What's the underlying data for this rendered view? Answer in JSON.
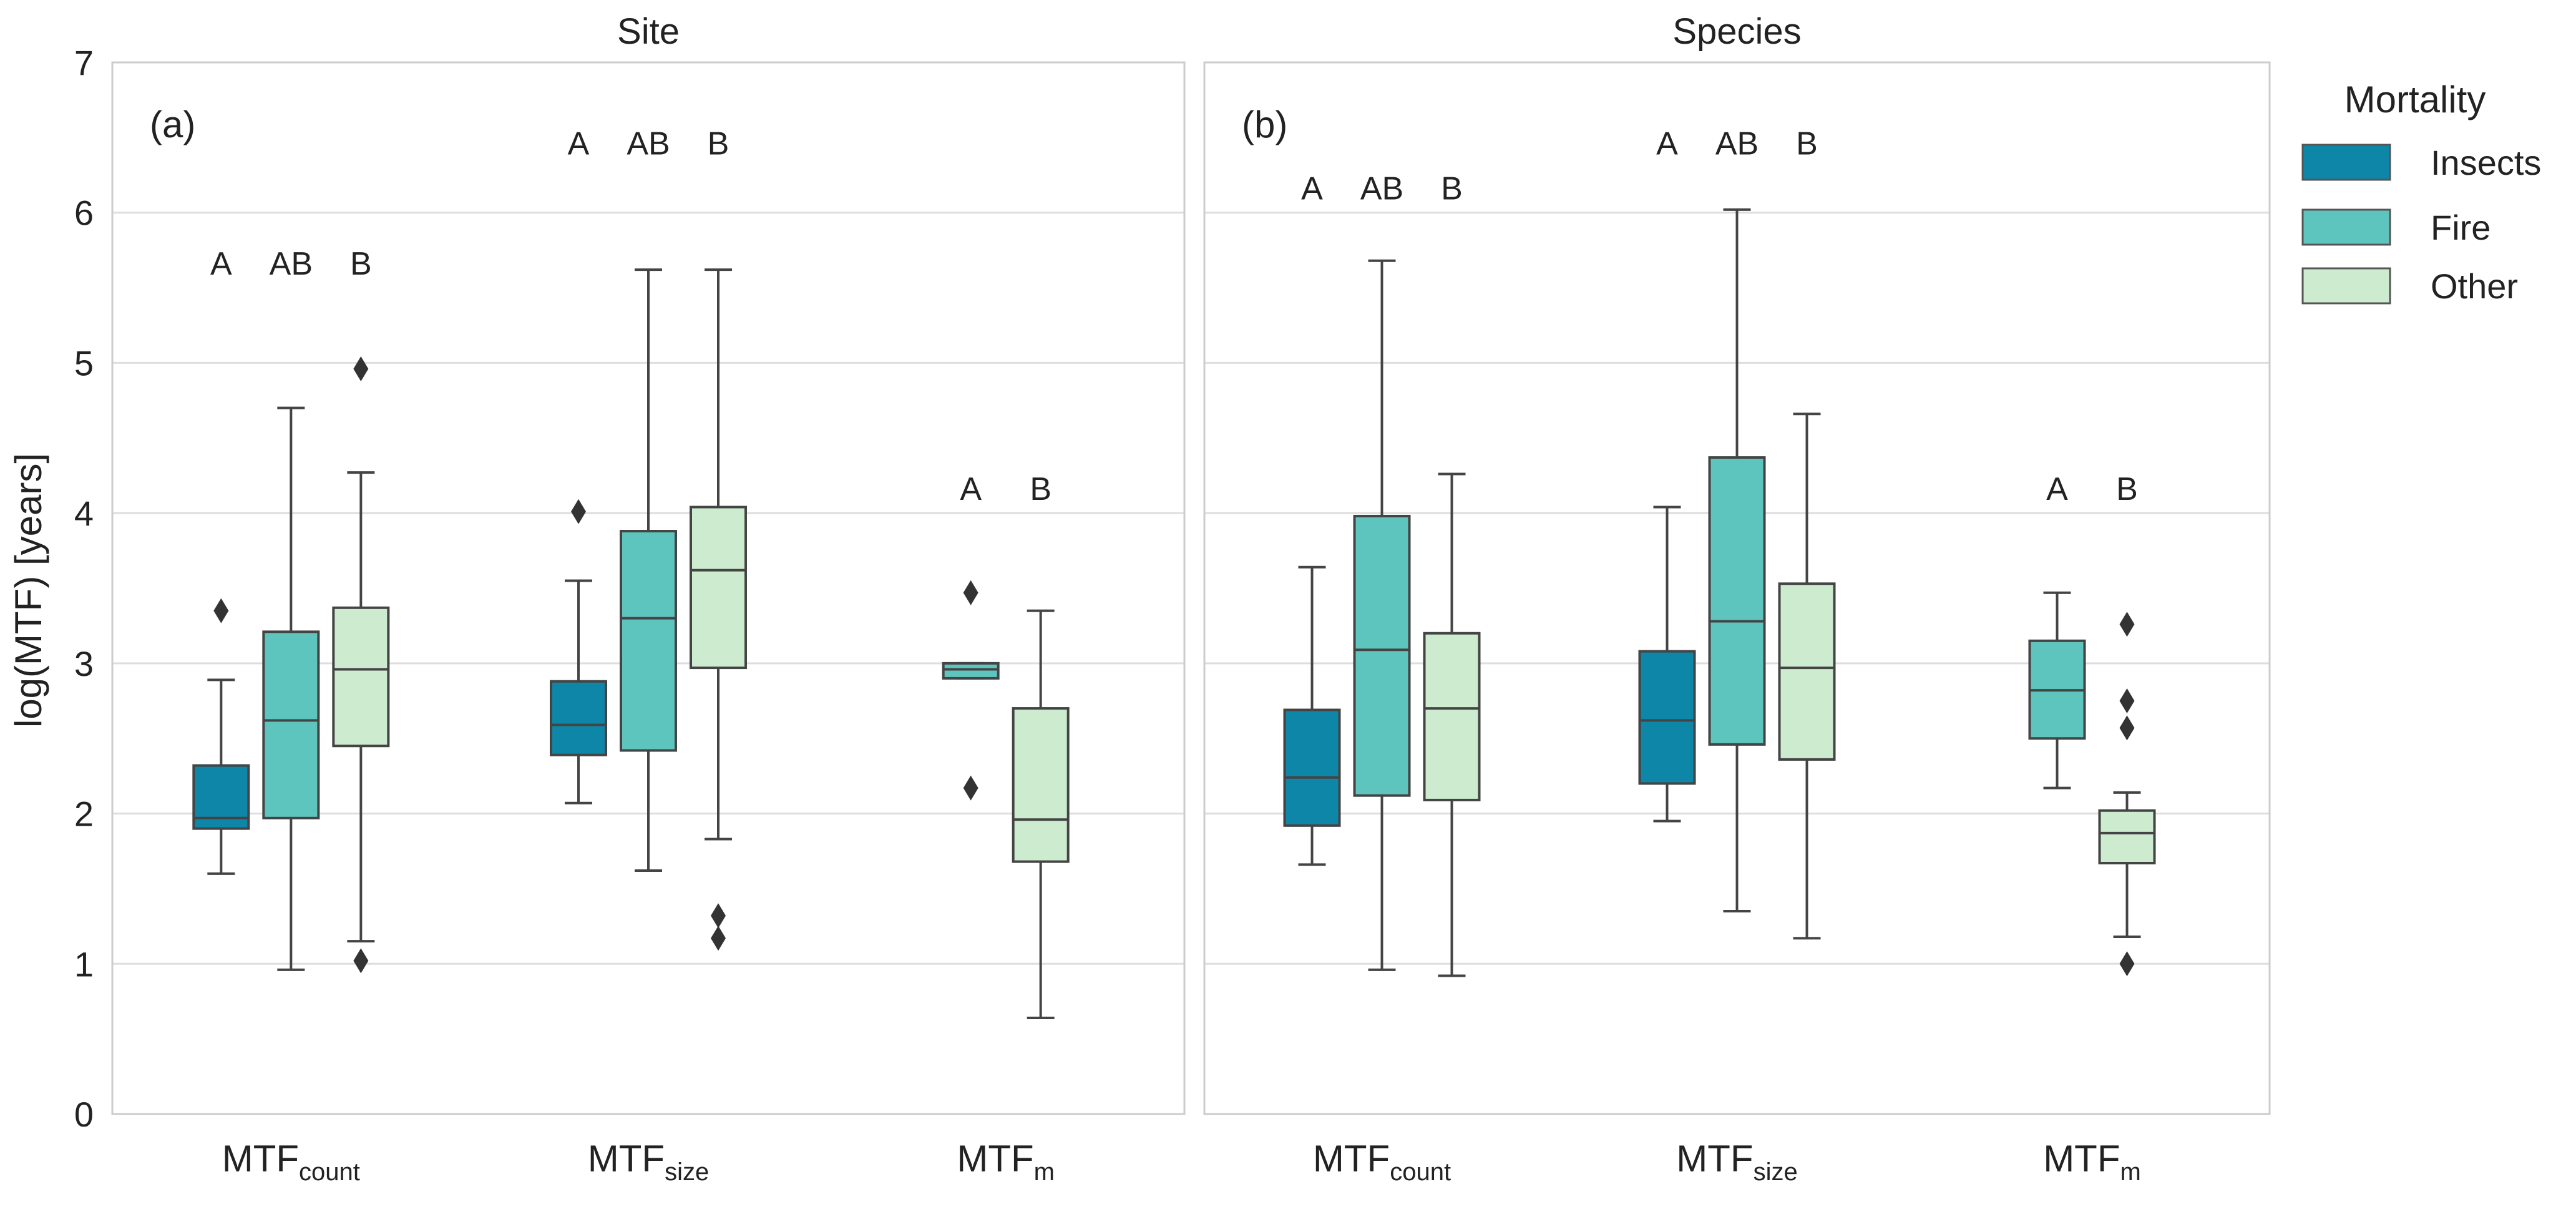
{
  "chart_data": {
    "type": "box",
    "ylabel": "log(MTF) [years]",
    "ylim": [
      0,
      7
    ],
    "yticks": [
      "0",
      "1",
      "2",
      "3",
      "4",
      "5",
      "6",
      "7"
    ],
    "grid": true,
    "legend": {
      "title": "Mortality",
      "position": "right",
      "entries": [
        {
          "name": "Insects",
          "color": "#0e86a8"
        },
        {
          "name": "Fire",
          "color": "#5ec4be"
        },
        {
          "name": "Other",
          "color": "#cdeccf"
        }
      ]
    },
    "panels": [
      {
        "title": "Site",
        "tag": "(a)",
        "groups": [
          {
            "label": "MTF",
            "sub": "count",
            "boxes": [
              {
                "category": "Insects",
                "q1": 1.9,
                "median": 1.97,
                "q3": 2.32,
                "whisker_low": 1.6,
                "whisker_high": 2.89,
                "outliers": [
                  3.35
                ],
                "letter": "A",
                "letter_y": 5.65
              },
              {
                "category": "Fire",
                "q1": 1.97,
                "median": 2.62,
                "q3": 3.21,
                "whisker_low": 0.96,
                "whisker_high": 4.7,
                "outliers": [],
                "letter": "AB",
                "letter_y": 5.65
              },
              {
                "category": "Other",
                "q1": 2.45,
                "median": 2.96,
                "q3": 3.37,
                "whisker_low": 1.15,
                "whisker_high": 4.27,
                "outliers": [
                  1.02,
                  4.96
                ],
                "letter": "B",
                "letter_y": 5.65
              }
            ]
          },
          {
            "label": "MTF",
            "sub": "size",
            "boxes": [
              {
                "category": "Insects",
                "q1": 2.39,
                "median": 2.59,
                "q3": 2.88,
                "whisker_low": 2.07,
                "whisker_high": 3.55,
                "outliers": [
                  4.01
                ],
                "letter": "A",
                "letter_y": 6.45
              },
              {
                "category": "Fire",
                "q1": 2.42,
                "median": 3.3,
                "q3": 3.88,
                "whisker_low": 1.62,
                "whisker_high": 5.62,
                "outliers": [],
                "letter": "AB",
                "letter_y": 6.45
              },
              {
                "category": "Other",
                "q1": 2.97,
                "median": 3.62,
                "q3": 4.04,
                "whisker_low": 1.83,
                "whisker_high": 5.62,
                "outliers": [
                  1.32,
                  1.17
                ],
                "letter": "B",
                "letter_y": 6.45
              }
            ]
          },
          {
            "label": "MTF",
            "sub": "m",
            "boxes": [
              {
                "category": "Fire",
                "q1": 2.9,
                "median": 2.96,
                "q3": 3.0,
                "whisker_low": 2.9,
                "whisker_high": 3.0,
                "outliers": [
                  3.47,
                  2.17
                ],
                "letter": "A",
                "letter_y": 4.15
              },
              {
                "category": "Other",
                "q1": 1.68,
                "median": 1.96,
                "q3": 2.7,
                "whisker_low": 0.64,
                "whisker_high": 3.35,
                "outliers": [],
                "letter": "B",
                "letter_y": 4.15
              }
            ]
          }
        ]
      },
      {
        "title": "Species",
        "tag": "(b)",
        "groups": [
          {
            "label": "MTF",
            "sub": "count",
            "boxes": [
              {
                "category": "Insects",
                "q1": 1.92,
                "median": 2.24,
                "q3": 2.69,
                "whisker_low": 1.66,
                "whisker_high": 3.64,
                "outliers": [],
                "letter": "A",
                "letter_y": 6.15
              },
              {
                "category": "Fire",
                "q1": 2.12,
                "median": 3.09,
                "q3": 3.98,
                "whisker_low": 0.96,
                "whisker_high": 5.68,
                "outliers": [],
                "letter": "AB",
                "letter_y": 6.15
              },
              {
                "category": "Other",
                "q1": 2.09,
                "median": 2.7,
                "q3": 3.2,
                "whisker_low": 0.92,
                "whisker_high": 4.26,
                "outliers": [],
                "letter": "B",
                "letter_y": 6.15
              }
            ]
          },
          {
            "label": "MTF",
            "sub": "size",
            "boxes": [
              {
                "category": "Insects",
                "q1": 2.2,
                "median": 2.62,
                "q3": 3.08,
                "whisker_low": 1.95,
                "whisker_high": 4.04,
                "outliers": [],
                "letter": "A",
                "letter_y": 6.45
              },
              {
                "category": "Fire",
                "q1": 2.46,
                "median": 3.28,
                "q3": 4.37,
                "whisker_low": 1.35,
                "whisker_high": 6.02,
                "outliers": [],
                "letter": "AB",
                "letter_y": 6.45
              },
              {
                "category": "Other",
                "q1": 2.36,
                "median": 2.97,
                "q3": 3.53,
                "whisker_low": 1.17,
                "whisker_high": 4.66,
                "outliers": [],
                "letter": "B",
                "letter_y": 6.45
              }
            ]
          },
          {
            "label": "MTF",
            "sub": "m",
            "boxes": [
              {
                "category": "Fire",
                "q1": 2.5,
                "median": 2.82,
                "q3": 3.15,
                "whisker_low": 2.17,
                "whisker_high": 3.47,
                "outliers": [],
                "letter": "A",
                "letter_y": 4.15
              },
              {
                "category": "Other",
                "q1": 1.67,
                "median": 1.87,
                "q3": 2.02,
                "whisker_low": 1.18,
                "whisker_high": 2.14,
                "outliers": [
                  3.26,
                  2.75,
                  2.57,
                  1.0
                ],
                "letter": "B",
                "letter_y": 4.15
              }
            ]
          }
        ]
      }
    ]
  }
}
